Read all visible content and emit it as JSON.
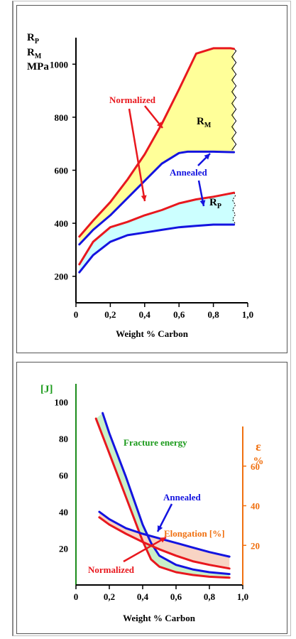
{
  "colors": {
    "normalized": "#e8181e",
    "annealed": "#1414e0",
    "fill_yellow": "#ffff99",
    "fill_cyan": "#ccffff",
    "fill_green": "#c8f0c8",
    "fill_pink": "#f8d4c4",
    "axis_black": "#000000",
    "axis_green": "#1c8c1c",
    "axis_orange": "#f07010",
    "label_green": "#1a9a1a",
    "label_orange": "#f07010"
  },
  "chart_data": [
    {
      "type": "line",
      "title": "",
      "y_label_lines": [
        "R",
        "R",
        "MPa"
      ],
      "y_label_subs": [
        "P",
        "M",
        ""
      ],
      "xlabel": "Weight % Carbon",
      "xlim": [
        0,
        1.0
      ],
      "ylim": [
        100,
        1100
      ],
      "x_ticks": [
        "0",
        "0,2",
        "0,4",
        "0,6",
        "0,8",
        "1,0"
      ],
      "x_tick_values": [
        0,
        0.2,
        0.4,
        0.6,
        0.8,
        1.0
      ],
      "y_ticks": [
        "200",
        "400",
        "600",
        "800",
        "1000"
      ],
      "y_tick_values": [
        200,
        400,
        600,
        800,
        1000
      ],
      "series": [
        {
          "name": "Normalized",
          "key": "RM_normalized",
          "color": "normalized",
          "x": [
            0.02,
            0.1,
            0.2,
            0.3,
            0.4,
            0.5,
            0.6,
            0.7,
            0.8,
            0.9,
            0.92
          ],
          "y": [
            350,
            410,
            480,
            565,
            660,
            775,
            905,
            1040,
            1060,
            1060,
            1058
          ]
        },
        {
          "name": "Annealed",
          "key": "RM_annealed",
          "color": "annealed",
          "x": [
            0.02,
            0.1,
            0.2,
            0.3,
            0.4,
            0.5,
            0.6,
            0.65,
            0.7,
            0.8,
            0.92
          ],
          "y": [
            320,
            375,
            430,
            495,
            560,
            625,
            665,
            670,
            670,
            670,
            668
          ]
        },
        {
          "name": "Normalized",
          "key": "RP_normalized",
          "color": "normalized",
          "x": [
            0.02,
            0.1,
            0.2,
            0.3,
            0.4,
            0.5,
            0.6,
            0.7,
            0.8,
            0.92
          ],
          "y": [
            245,
            330,
            385,
            405,
            430,
            450,
            475,
            490,
            500,
            515
          ]
        },
        {
          "name": "Annealed",
          "key": "RP_annealed",
          "color": "annealed",
          "x": [
            0.02,
            0.1,
            0.2,
            0.3,
            0.4,
            0.5,
            0.6,
            0.7,
            0.8,
            0.92
          ],
          "y": [
            215,
            280,
            330,
            355,
            365,
            375,
            385,
            390,
            395,
            395
          ]
        }
      ],
      "annotations": {
        "normalized": "Normalized",
        "annealed": "Annealed",
        "rm_base": "R",
        "rm_sub": "M",
        "rp_base": "R",
        "rp_sub": "P"
      }
    },
    {
      "type": "line",
      "title": "",
      "ylabel_left": "[J]",
      "ylabel_right_top": "ε",
      "ylabel_right_unit": "%",
      "xlabel": "Weight % Carbon",
      "xlim": [
        0,
        1.0
      ],
      "ylim": [
        0,
        110
      ],
      "x_ticks": [
        "0",
        "0,2",
        "0,4",
        "0,6",
        "0,8",
        "1,0"
      ],
      "x_tick_values": [
        0,
        0.2,
        0.4,
        0.6,
        0.8,
        1.0
      ],
      "y_ticks": [
        "20",
        "40",
        "60",
        "80",
        "100"
      ],
      "y_tick_values": [
        20,
        40,
        60,
        80,
        100
      ],
      "y2_ticks": [
        "20",
        "40",
        "60"
      ],
      "y2_tick_values": [
        20,
        40,
        60
      ],
      "y2lim": [
        0,
        80
      ],
      "series": [
        {
          "name": "Fracture energy (Normalized)",
          "key": "fe_normalized",
          "color": "normalized",
          "x": [
            0.12,
            0.2,
            0.3,
            0.4,
            0.45,
            0.5,
            0.6,
            0.7,
            0.8,
            0.92
          ],
          "y": [
            91,
            72,
            48,
            24,
            14,
            10,
            7,
            5.5,
            4.5,
            4
          ]
        },
        {
          "name": "Fracture energy (Annealed)",
          "key": "fe_annealed",
          "color": "annealed",
          "x": [
            0.16,
            0.2,
            0.3,
            0.4,
            0.45,
            0.5,
            0.6,
            0.7,
            0.8,
            0.92
          ],
          "y": [
            94,
            83,
            59,
            33,
            23,
            16,
            11,
            8.5,
            7,
            6
          ]
        },
        {
          "name": "Elongation (Annealed)",
          "key": "el_annealed",
          "color": "annealed",
          "x": [
            0.14,
            0.2,
            0.3,
            0.4,
            0.5,
            0.6,
            0.7,
            0.8,
            0.92
          ],
          "y": [
            40,
            36,
            31,
            28,
            25.5,
            23,
            20.5,
            18,
            15.5
          ]
        },
        {
          "name": "Elongation (Normalized)",
          "key": "el_normalized",
          "color": "normalized",
          "x": [
            0.14,
            0.2,
            0.3,
            0.4,
            0.5,
            0.6,
            0.7,
            0.8,
            0.92
          ],
          "y": [
            37,
            33,
            28,
            23.5,
            19.5,
            16,
            13,
            11,
            9
          ]
        }
      ],
      "annotations": {
        "fracture_energy": "Fracture energy",
        "annealed": "Annealed",
        "elongation": "Elongation [%]",
        "normalized": "Normalized"
      }
    }
  ]
}
